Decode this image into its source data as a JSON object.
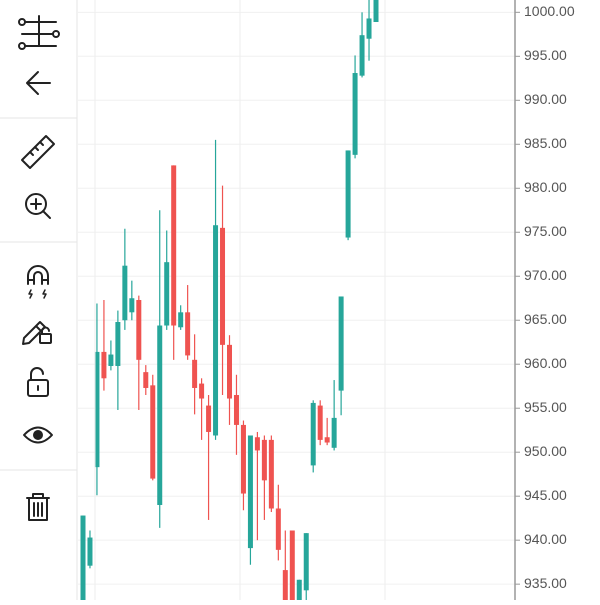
{
  "chart_data": {
    "type": "candlestick",
    "open": [
      933.2,
      937.1,
      948.3,
      961.4,
      959.8,
      959.8,
      965.0,
      965.9,
      967.3,
      959.1,
      957.6,
      944.0,
      964.4,
      982.6,
      964.2,
      965.9,
      960.5,
      957.8,
      955.3,
      951.9,
      975.5,
      962.2,
      956.5,
      953.1,
      939.1,
      951.7,
      951.4,
      951.4,
      943.6,
      936.6,
      941.1,
      933.2,
      934.3,
      948.5,
      955.3,
      951.7,
      950.5,
      957.0,
      974.4,
      983.8,
      992.8,
      997.0,
      998.9
    ],
    "high": [
      942.8,
      941.1,
      966.9,
      967.3,
      962.7,
      966.1,
      975.4,
      969.5,
      967.8,
      959.9,
      958.8,
      977.5,
      975.2,
      982.6,
      966.7,
      969.0,
      963.4,
      958.4,
      956.5,
      985.5,
      980.3,
      963.3,
      958.8,
      953.6,
      951.9,
      952.3,
      951.9,
      951.9,
      946.3,
      941.1,
      941.1,
      935.5,
      940.8,
      955.9,
      955.9,
      953.9,
      958.2,
      967.7,
      984.3,
      995.1,
      1000.0,
      1001.4,
      1001.4
    ],
    "low": [
      933.2,
      936.8,
      945.1,
      957.0,
      959.3,
      954.8,
      963.9,
      965.0,
      954.8,
      956.5,
      946.8,
      941.4,
      963.9,
      960.5,
      963.9,
      960.5,
      954.3,
      951.4,
      942.3,
      951.4,
      956.5,
      953.1,
      949.7,
      943.4,
      937.2,
      940.0,
      942.3,
      943.2,
      937.7,
      933.2,
      933.2,
      933.2,
      933.2,
      947.7,
      950.8,
      950.8,
      950.2,
      954.2,
      974.1,
      983.4,
      992.6,
      994.5,
      998.9
    ],
    "close": [
      942.8,
      940.3,
      961.4,
      958.4,
      961.1,
      964.8,
      971.2,
      967.5,
      960.5,
      957.3,
      947.0,
      964.4,
      971.6,
      964.4,
      965.9,
      961.0,
      957.3,
      956.1,
      952.3,
      975.8,
      962.2,
      956.1,
      953.1,
      945.3,
      951.9,
      950.2,
      946.8,
      943.6,
      938.9,
      933.2,
      933.2,
      935.5,
      940.8,
      955.6,
      951.4,
      951.1,
      953.9,
      967.7,
      984.3,
      993.1,
      997.4,
      999.3,
      1001.4
    ],
    "up_color": "#26a69a",
    "down_color": "#ef5350",
    "ylim": [
      933.2,
      1001.4
    ],
    "yticks": [
      {
        "value": 935,
        "label": "935.00"
      },
      {
        "value": 940,
        "label": "940.00"
      },
      {
        "value": 945,
        "label": "945.00"
      },
      {
        "value": 950,
        "label": "950.00"
      },
      {
        "value": 955,
        "label": "955.00"
      },
      {
        "value": 960,
        "label": "960.00"
      },
      {
        "value": 965,
        "label": "965.00"
      },
      {
        "value": 970,
        "label": "970.00"
      },
      {
        "value": 975,
        "label": "975.00"
      },
      {
        "value": 980,
        "label": "980.00"
      },
      {
        "value": 985,
        "label": "985.00"
      },
      {
        "value": 990,
        "label": "990.00"
      },
      {
        "value": 995,
        "label": "995.00"
      },
      {
        "value": 1000,
        "label": "1000.00"
      }
    ],
    "grid": true
  }
}
